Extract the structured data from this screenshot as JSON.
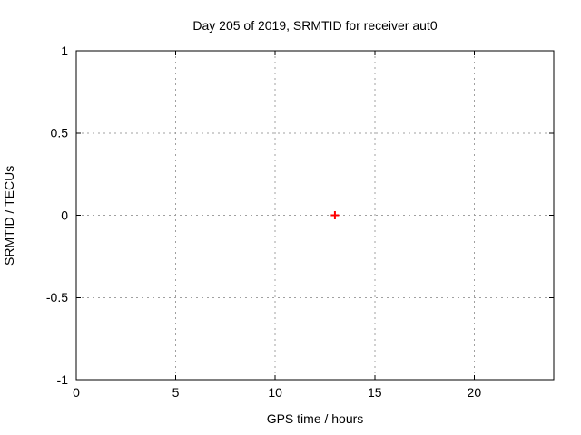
{
  "chart_data": {
    "type": "scatter",
    "title": "Day 205 of 2019, SRMTID for receiver aut0",
    "xlabel": "GPS time / hours",
    "ylabel": "SRMTID / TECUs",
    "xlim": [
      0,
      24
    ],
    "ylim": [
      -1,
      1
    ],
    "xticks": [
      0,
      5,
      10,
      15,
      20
    ],
    "xtick_labels": [
      "0",
      "5",
      "10",
      "15",
      "20"
    ],
    "yticks": [
      -1,
      -0.5,
      0,
      0.5,
      1
    ],
    "ytick_labels": [
      "-1",
      "-0.5",
      "0",
      "0.5",
      "1"
    ],
    "grid": true,
    "legend": false,
    "series": [
      {
        "marker": "plus",
        "color": "#ff0000",
        "points": [
          {
            "x": 13.0,
            "y": 0.0
          }
        ]
      }
    ]
  },
  "style": {
    "background_color": "#ffffff",
    "axis_color": "#000000",
    "grid_color": "#a0a0a0",
    "text_color": "#000000"
  }
}
